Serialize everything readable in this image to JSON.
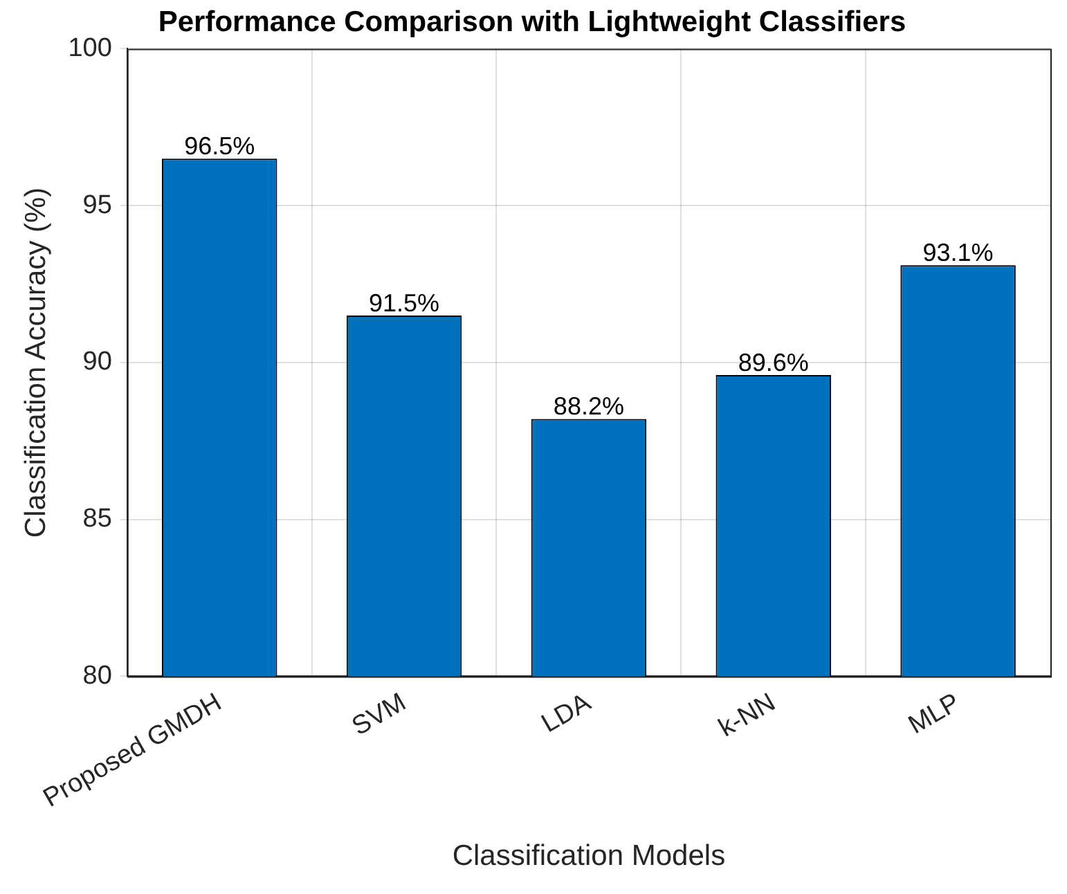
{
  "chart_data": {
    "type": "bar",
    "title": "Performance Comparison with Lightweight Classifiers",
    "xlabel": "Classification Models",
    "ylabel": "Classification Accuracy (%)",
    "categories": [
      "Proposed GMDH",
      "SVM",
      "LDA",
      "k-NN",
      "MLP"
    ],
    "values": [
      96.5,
      91.5,
      88.2,
      89.6,
      93.1
    ],
    "value_labels": [
      "96.5%",
      "91.5%",
      "88.2%",
      "89.6%",
      "93.1%"
    ],
    "color": "#0072bd",
    "ylim": [
      80,
      100
    ],
    "yticks": [
      80,
      85,
      90,
      95,
      100
    ],
    "grid": true
  }
}
